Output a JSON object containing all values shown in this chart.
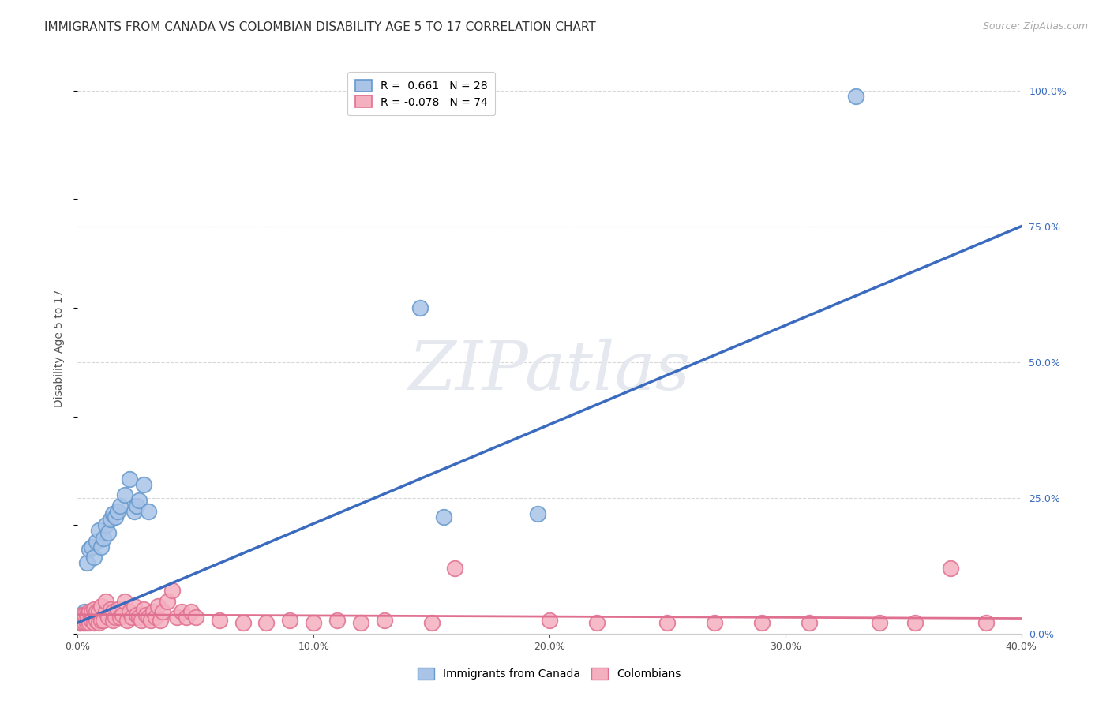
{
  "title": "IMMIGRANTS FROM CANADA VS COLOMBIAN DISABILITY AGE 5 TO 17 CORRELATION CHART",
  "source": "Source: ZipAtlas.com",
  "ylabel": "Disability Age 5 to 17",
  "xlim": [
    0.0,
    0.4
  ],
  "ylim": [
    0.0,
    1.05
  ],
  "x_ticks": [
    0.0,
    0.1,
    0.2,
    0.3,
    0.4
  ],
  "x_tick_labels": [
    "0.0%",
    "10.0%",
    "20.0%",
    "30.0%",
    "40.0%"
  ],
  "y_ticks_right": [
    0.0,
    0.25,
    0.5,
    0.75,
    1.0
  ],
  "y_tick_labels_right": [
    "0.0%",
    "25.0%",
    "50.0%",
    "75.0%",
    "100.0%"
  ],
  "blue_scatter_x": [
    0.001,
    0.003,
    0.004,
    0.005,
    0.006,
    0.007,
    0.008,
    0.009,
    0.01,
    0.011,
    0.012,
    0.013,
    0.014,
    0.015,
    0.016,
    0.017,
    0.018,
    0.02,
    0.022,
    0.024,
    0.025,
    0.026,
    0.028,
    0.03,
    0.145,
    0.155,
    0.195,
    0.33
  ],
  "blue_scatter_y": [
    0.02,
    0.04,
    0.13,
    0.155,
    0.16,
    0.14,
    0.17,
    0.19,
    0.16,
    0.175,
    0.2,
    0.185,
    0.21,
    0.22,
    0.215,
    0.225,
    0.235,
    0.255,
    0.285,
    0.225,
    0.235,
    0.245,
    0.275,
    0.225,
    0.6,
    0.215,
    0.22,
    0.99
  ],
  "pink_scatter_x": [
    0.001,
    0.002,
    0.002,
    0.003,
    0.003,
    0.004,
    0.004,
    0.005,
    0.005,
    0.006,
    0.006,
    0.007,
    0.007,
    0.008,
    0.008,
    0.009,
    0.009,
    0.01,
    0.01,
    0.011,
    0.012,
    0.012,
    0.013,
    0.014,
    0.015,
    0.015,
    0.016,
    0.017,
    0.018,
    0.019,
    0.02,
    0.021,
    0.022,
    0.023,
    0.024,
    0.025,
    0.026,
    0.027,
    0.028,
    0.029,
    0.03,
    0.031,
    0.032,
    0.033,
    0.034,
    0.035,
    0.036,
    0.038,
    0.04,
    0.042,
    0.044,
    0.046,
    0.048,
    0.05,
    0.06,
    0.07,
    0.08,
    0.09,
    0.1,
    0.11,
    0.12,
    0.13,
    0.15,
    0.16,
    0.2,
    0.22,
    0.25,
    0.27,
    0.29,
    0.31,
    0.34,
    0.355,
    0.37,
    0.385
  ],
  "pink_scatter_y": [
    0.02,
    0.02,
    0.035,
    0.02,
    0.035,
    0.02,
    0.035,
    0.02,
    0.04,
    0.025,
    0.04,
    0.02,
    0.045,
    0.025,
    0.04,
    0.02,
    0.04,
    0.025,
    0.05,
    0.025,
    0.04,
    0.06,
    0.03,
    0.045,
    0.025,
    0.04,
    0.03,
    0.045,
    0.03,
    0.035,
    0.06,
    0.025,
    0.04,
    0.03,
    0.05,
    0.035,
    0.03,
    0.025,
    0.045,
    0.035,
    0.03,
    0.025,
    0.04,
    0.03,
    0.05,
    0.025,
    0.04,
    0.06,
    0.08,
    0.03,
    0.04,
    0.03,
    0.04,
    0.03,
    0.025,
    0.02,
    0.02,
    0.025,
    0.02,
    0.025,
    0.02,
    0.025,
    0.02,
    0.12,
    0.025,
    0.02,
    0.02,
    0.02,
    0.02,
    0.02,
    0.02,
    0.02,
    0.12,
    0.02
  ],
  "blue_trend_x0": 0.0,
  "blue_trend_y0": 0.02,
  "blue_trend_x1": 0.4,
  "blue_trend_y1": 0.75,
  "pink_trend_x0": 0.0,
  "pink_trend_y0": 0.035,
  "pink_trend_x1": 0.4,
  "pink_trend_y1": 0.028,
  "blue_color": "#6699cc",
  "blue_fill": "#aac4e8",
  "blue_line_color": "#3a6bbf",
  "pink_color": "#e07090",
  "pink_fill": "#f5b0c0",
  "pink_line_color": "#e07090",
  "grid_color": "#d8d8d8",
  "background_color": "#ffffff",
  "watermark_text": "ZIPatlas",
  "title_fontsize": 11,
  "axis_label_fontsize": 10,
  "tick_fontsize": 9,
  "legend_fontsize": 10,
  "source_fontsize": 9,
  "legend_label_blue": "R =  0.661   N = 28",
  "legend_label_pink": "R = -0.078   N = 74",
  "bottom_legend_label_blue": "Immigrants from Canada",
  "bottom_legend_label_pink": "Colombians"
}
